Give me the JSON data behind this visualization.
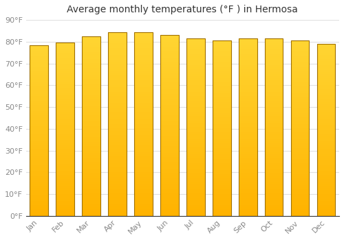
{
  "title": "Average monthly temperatures (°F ) in Hermosa",
  "months": [
    "Jan",
    "Feb",
    "Mar",
    "Apr",
    "May",
    "Jun",
    "Jul",
    "Aug",
    "Sep",
    "Oct",
    "Nov",
    "Dec"
  ],
  "values": [
    78.5,
    79.5,
    82.5,
    84.5,
    84.5,
    83.0,
    81.5,
    80.5,
    81.5,
    81.5,
    80.5,
    79.0
  ],
  "ylim": [
    0,
    90
  ],
  "yticks": [
    0,
    10,
    20,
    30,
    40,
    50,
    60,
    70,
    80,
    90
  ],
  "ytick_labels": [
    "0°F",
    "10°F",
    "20°F",
    "30°F",
    "40°F",
    "50°F",
    "60°F",
    "70°F",
    "80°F",
    "90°F"
  ],
  "background_color": "#FFFFFF",
  "plot_bg_color": "#FFFFFF",
  "grid_color": "#E0E0E0",
  "title_fontsize": 10,
  "tick_fontsize": 8,
  "bar_edge_color": "#A07000",
  "bar_color_bottom": "#FFB300",
  "bar_color_top": "#FFCC44",
  "bar_width": 0.7,
  "tick_color": "#888888"
}
